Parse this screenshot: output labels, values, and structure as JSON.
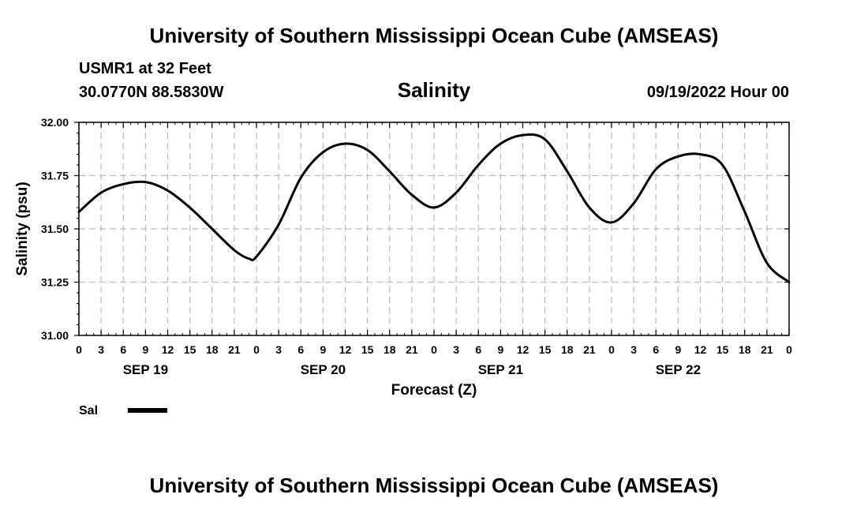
{
  "header": {
    "title_top": "University of Southern Mississippi Ocean Cube (AMSEAS)",
    "title_bottom": "University of Southern Mississippi Ocean Cube (AMSEAS)",
    "station": "USMR1 at 32 Feet",
    "coords": "30.0770N  88.5830W",
    "datetime": "09/19/2022 Hour 00"
  },
  "chart_data": {
    "type": "line",
    "title": "Salinity",
    "xlabel": "Forecast (Z)",
    "ylabel": "Salinity (psu)",
    "ylim": [
      31.0,
      32.0
    ],
    "yticks": [
      31.0,
      31.25,
      31.5,
      31.75,
      32.0
    ],
    "ytick_labels": [
      "31.00",
      "31.25",
      "31.50",
      "31.75",
      "32.00"
    ],
    "xlim": [
      0,
      96
    ],
    "xticks": [
      0,
      3,
      6,
      9,
      12,
      15,
      18,
      21,
      24,
      27,
      30,
      33,
      36,
      39,
      42,
      45,
      48,
      51,
      54,
      57,
      60,
      63,
      66,
      69,
      72,
      75,
      78,
      81,
      84,
      87,
      90,
      93,
      96
    ],
    "xtick_labels": [
      "0",
      "3",
      "6",
      "9",
      "12",
      "15",
      "18",
      "21",
      "0",
      "3",
      "6",
      "9",
      "12",
      "15",
      "18",
      "21",
      "0",
      "3",
      "6",
      "9",
      "12",
      "15",
      "18",
      "21",
      "0",
      "3",
      "6",
      "9",
      "12",
      "15",
      "18",
      "21",
      "0"
    ],
    "date_labels": [
      {
        "label": "SEP 19",
        "hour": 9
      },
      {
        "label": "SEP 20",
        "hour": 33
      },
      {
        "label": "SEP 21",
        "hour": 57
      },
      {
        "label": "SEP 22",
        "hour": 81
      }
    ],
    "grid": true,
    "legend": "bottom-left",
    "series": [
      {
        "name": "Sal",
        "color": "#000000",
        "x": [
          0,
          3,
          6,
          9,
          12,
          15,
          18,
          21,
          23,
          24,
          27,
          30,
          33,
          36,
          39,
          42,
          45,
          48,
          51,
          54,
          57,
          60,
          63,
          66,
          69,
          72,
          75,
          78,
          81,
          84,
          87,
          90,
          93,
          96
        ],
        "values": [
          31.58,
          31.67,
          31.71,
          31.72,
          31.68,
          31.6,
          31.5,
          31.4,
          31.36,
          31.37,
          31.52,
          31.74,
          31.86,
          31.9,
          31.87,
          31.77,
          31.66,
          31.6,
          31.67,
          31.8,
          31.9,
          31.94,
          31.92,
          31.77,
          31.6,
          31.53,
          31.62,
          31.78,
          31.84,
          31.85,
          31.8,
          31.58,
          31.34,
          31.25
        ]
      }
    ]
  }
}
